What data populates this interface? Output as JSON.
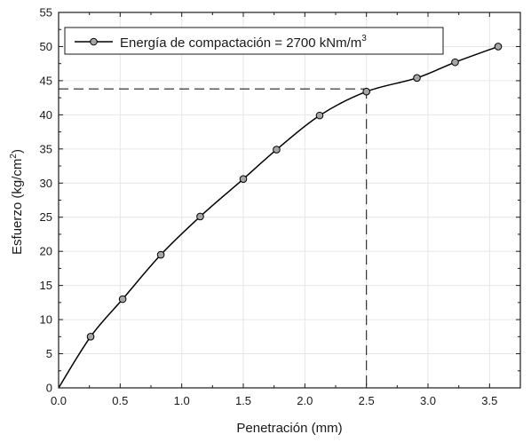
{
  "chart_data": {
    "type": "line",
    "x": [
      0.0,
      0.26,
      0.52,
      0.83,
      1.15,
      1.5,
      1.77,
      2.12,
      2.5,
      2.91,
      3.22,
      3.57
    ],
    "series": [
      {
        "name": "Energía de compactación = 2700 kNm/m",
        "name_sup": "3",
        "values": [
          0.0,
          7.5,
          13.0,
          19.5,
          25.1,
          30.6,
          34.9,
          39.9,
          43.4,
          45.4,
          47.7,
          50.0
        ],
        "markers": [
          false,
          true,
          true,
          true,
          true,
          true,
          true,
          true,
          true,
          true,
          true,
          true
        ],
        "color": "#000000",
        "marker_fill": "#a6a6a6"
      }
    ],
    "reference": {
      "x": 2.5,
      "y": 43.8,
      "style": "dashed"
    },
    "xlabel": "Penetración (mm)",
    "ylabel": {
      "text": "Esfuerzo (kg/cm",
      "sup": "2",
      "close": ")"
    },
    "xlim": [
      0.0,
      3.75
    ],
    "ylim": [
      0,
      55
    ],
    "xticks": [
      "0.0",
      "0.5",
      "1.0",
      "1.5",
      "2.0",
      "2.5",
      "3.0",
      "3.5"
    ],
    "yticks": [
      "0",
      "5",
      "10",
      "15",
      "20",
      "25",
      "30",
      "35",
      "40",
      "45",
      "50",
      "55"
    ],
    "grid": true,
    "legend_position": "top-left"
  }
}
